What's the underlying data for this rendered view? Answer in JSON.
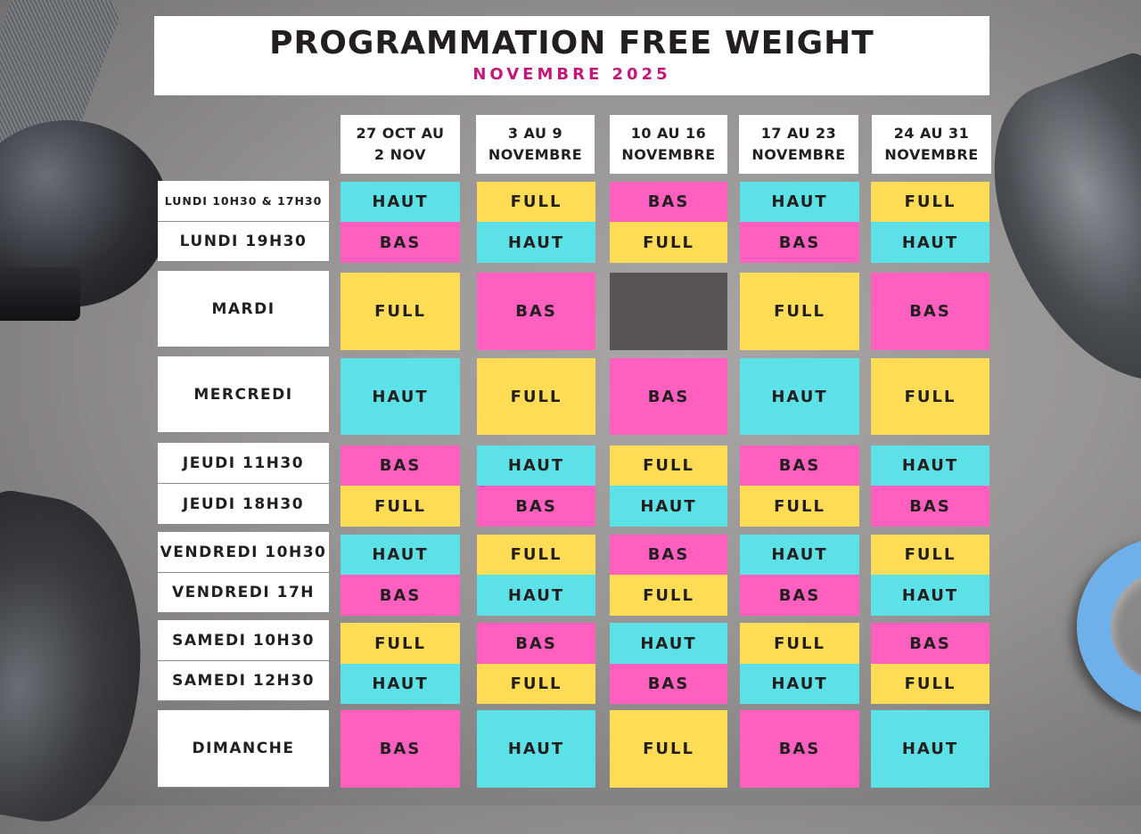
{
  "header": {
    "title": "PROGRAMMATION FREE WEIGHT",
    "subtitle": "NOVEMBRE 2025"
  },
  "colors": {
    "haut": "#5ce1e6",
    "bas": "#ff60bf",
    "full": "#ffdc55",
    "none": "#595557",
    "subtitle": "#c2187a"
  },
  "weeks": [
    {
      "line1": "27 OCT AU",
      "line2": "2 NOV"
    },
    {
      "line1": "3 AU 9",
      "line2": "NOVEMBRE"
    },
    {
      "line1": "10 AU 16",
      "line2": "NOVEMBRE"
    },
    {
      "line1": "17 AU 23",
      "line2": "NOVEMBRE"
    },
    {
      "line1": "24 AU 31",
      "line2": "NOVEMBRE"
    }
  ],
  "schedule": [
    {
      "label": "LUNDI 10H30 & 17H30",
      "sessions": [
        "HAUT",
        "FULL",
        "BAS",
        "HAUT",
        "FULL"
      ]
    },
    {
      "label": "LUNDI 19H30",
      "sessions": [
        "BAS",
        "HAUT",
        "FULL",
        "BAS",
        "HAUT"
      ]
    },
    {
      "label": "MARDI",
      "sessions": [
        "FULL",
        "BAS",
        "",
        "FULL",
        "BAS"
      ]
    },
    {
      "label": "MERCREDI",
      "sessions": [
        "HAUT",
        "FULL",
        "BAS",
        "HAUT",
        "FULL"
      ]
    },
    {
      "label": "JEUDI 11H30",
      "sessions": [
        "BAS",
        "HAUT",
        "FULL",
        "BAS",
        "HAUT"
      ]
    },
    {
      "label": "JEUDI 18H30",
      "sessions": [
        "FULL",
        "BAS",
        "HAUT",
        "FULL",
        "BAS"
      ]
    },
    {
      "label": "VENDREDI 10H30",
      "sessions": [
        "HAUT",
        "FULL",
        "BAS",
        "HAUT",
        "FULL"
      ]
    },
    {
      "label": "VENDREDI 17H",
      "sessions": [
        "BAS",
        "HAUT",
        "FULL",
        "BAS",
        "HAUT"
      ]
    },
    {
      "label": "SAMEDI 10H30",
      "sessions": [
        "FULL",
        "BAS",
        "HAUT",
        "FULL",
        "BAS"
      ]
    },
    {
      "label": "SAMEDI 12H30",
      "sessions": [
        "HAUT",
        "FULL",
        "BAS",
        "HAUT",
        "FULL"
      ]
    },
    {
      "label": "DIMANCHE",
      "sessions": [
        "BAS",
        "HAUT",
        "FULL",
        "BAS",
        "HAUT"
      ]
    }
  ]
}
